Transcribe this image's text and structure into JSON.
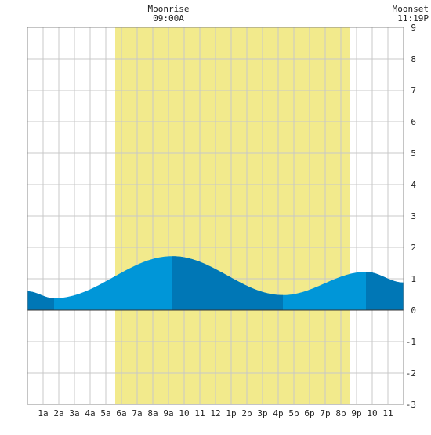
{
  "chart_data": {
    "type": "area",
    "title": "",
    "xlabel": "",
    "ylabel": "",
    "x_tick_labels": [
      "1a",
      "2a",
      "3a",
      "4a",
      "5a",
      "6a",
      "7a",
      "8a",
      "9a",
      "10",
      "11",
      "12",
      "1p",
      "2p",
      "3p",
      "4p",
      "5p",
      "6p",
      "7p",
      "8p",
      "9p",
      "10",
      "11"
    ],
    "xlim": [
      0,
      24
    ],
    "ylim": [
      -3,
      9
    ],
    "y_ticks": [
      -3,
      -2,
      -1,
      0,
      1,
      2,
      3,
      4,
      5,
      6,
      7,
      8,
      9
    ],
    "grid": true,
    "daylight": {
      "start": 5.6,
      "end": 20.6
    },
    "moon": {
      "moonrise_label": "Moonrise",
      "moonrise_time": "09:00A",
      "moonrise_x": 9.0,
      "moonset_label": "Moonset",
      "moonset_time": "11:19P",
      "moonset_x": 23.3
    },
    "extremes": [
      {
        "x": 0.0,
        "y": 0.6,
        "type": "start"
      },
      {
        "x": 1.7,
        "y": 0.38,
        "type": "low"
      },
      {
        "x": 9.25,
        "y": 1.72,
        "type": "high"
      },
      {
        "x": 16.3,
        "y": 0.48,
        "type": "low"
      },
      {
        "x": 21.6,
        "y": 1.22,
        "type": "high"
      },
      {
        "x": 24.0,
        "y": 0.88,
        "type": "end"
      }
    ],
    "shade_segments": [
      [
        0,
        1.7
      ],
      [
        9.25,
        16.3
      ],
      [
        21.6,
        24
      ]
    ],
    "colors": {
      "water": "#0096d8",
      "water_dark": "#0077b6",
      "daylight": "#f2ea8c",
      "grid": "#c8c8c8",
      "frame": "#888888"
    }
  }
}
